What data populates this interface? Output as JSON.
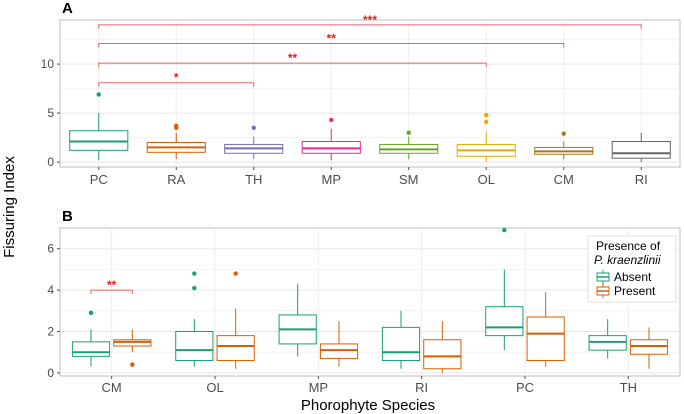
{
  "chart_data": [
    {
      "type": "box",
      "panel_label": "A",
      "categories": [
        "PC",
        "RA",
        "TH",
        "MP",
        "SM",
        "OL",
        "CM",
        "RI"
      ],
      "colors": [
        "#1b9e77",
        "#d95f02",
        "#7570b3",
        "#e7298a",
        "#66a61e",
        "#e6ab02",
        "#a6761d",
        "#666666"
      ],
      "ylim": [
        -0.5,
        14.5
      ],
      "yticks": [
        0,
        5,
        10
      ],
      "ytick_labels": [
        "0",
        "5",
        "10"
      ],
      "grid": true,
      "boxes": [
        {
          "category": "PC",
          "min": 0.2,
          "q1": 1.2,
          "median": 2.1,
          "q3": 3.2,
          "max": 5.0,
          "outliers": [
            6.9
          ]
        },
        {
          "category": "RA",
          "min": 0.3,
          "q1": 1.0,
          "median": 1.5,
          "q3": 2.0,
          "max": 3.0,
          "outliers": [
            3.5,
            3.7
          ]
        },
        {
          "category": "TH",
          "min": 0.3,
          "q1": 0.9,
          "median": 1.4,
          "q3": 1.8,
          "max": 2.6,
          "outliers": [
            3.5
          ]
        },
        {
          "category": "MP",
          "min": 0.2,
          "q1": 0.9,
          "median": 1.4,
          "q3": 2.1,
          "max": 3.4,
          "outliers": [
            4.3
          ]
        },
        {
          "category": "SM",
          "min": 0.3,
          "q1": 0.9,
          "median": 1.3,
          "q3": 1.8,
          "max": 2.6,
          "outliers": [
            3.0
          ]
        },
        {
          "category": "OL",
          "min": 0.0,
          "q1": 0.6,
          "median": 1.2,
          "q3": 1.8,
          "max": 3.1,
          "outliers": [
            4.1,
            4.8
          ]
        },
        {
          "category": "CM",
          "min": 0.3,
          "q1": 0.8,
          "median": 1.1,
          "q3": 1.5,
          "max": 2.1,
          "outliers": [
            2.9
          ]
        },
        {
          "category": "RI",
          "min": 0.0,
          "q1": 0.4,
          "median": 0.9,
          "q3": 2.1,
          "max": 3.0,
          "outliers": []
        }
      ],
      "significance": [
        {
          "from": "PC",
          "to": "TH",
          "y": 8.1,
          "label": "*"
        },
        {
          "from": "PC",
          "to": "OL",
          "y": 10.1,
          "label": "**"
        },
        {
          "from": "PC",
          "to": "CM",
          "y": 12.1,
          "label": "**"
        },
        {
          "from": "PC",
          "to": "RI",
          "y": 14.0,
          "label": "***"
        }
      ]
    },
    {
      "type": "box",
      "panel_label": "B",
      "categories": [
        "CM",
        "OL",
        "MP",
        "RI",
        "PC",
        "TH"
      ],
      "xlabel": "Phorophyte Species",
      "ylim": [
        -0.15,
        7.0
      ],
      "yticks": [
        0,
        2,
        4,
        6
      ],
      "ytick_labels": [
        "0",
        "2",
        "4",
        "6"
      ],
      "grid": true,
      "legend": {
        "title_line1": "Presence of",
        "title_line2": "P. kraenzlinii",
        "placement": "right",
        "entries": [
          "Absent",
          "Present"
        ]
      },
      "series": [
        {
          "name": "Absent",
          "color": "#1b9e77",
          "boxes": [
            {
              "category": "CM",
              "min": 0.3,
              "q1": 0.8,
              "median": 1.0,
              "q3": 1.5,
              "max": 2.1,
              "outliers": [
                2.9
              ]
            },
            {
              "category": "OL",
              "min": 0.3,
              "q1": 0.6,
              "median": 1.1,
              "q3": 2.0,
              "max": 2.6,
              "outliers": [
                4.1,
                4.8
              ]
            },
            {
              "category": "MP",
              "min": 0.8,
              "q1": 1.4,
              "median": 2.1,
              "q3": 2.8,
              "max": 4.3,
              "outliers": []
            },
            {
              "category": "RI",
              "min": 0.2,
              "q1": 0.6,
              "median": 1.0,
              "q3": 2.2,
              "max": 3.0,
              "outliers": []
            },
            {
              "category": "PC",
              "min": 1.1,
              "q1": 1.8,
              "median": 2.2,
              "q3": 3.2,
              "max": 5.0,
              "outliers": [
                6.9
              ]
            },
            {
              "category": "TH",
              "min": 0.7,
              "q1": 1.1,
              "median": 1.5,
              "q3": 1.8,
              "max": 2.6,
              "outliers": [
                3.5
              ]
            }
          ]
        },
        {
          "name": "Present",
          "color": "#d95f02",
          "boxes": [
            {
              "category": "CM",
              "min": 1.0,
              "q1": 1.3,
              "median": 1.5,
              "q3": 1.6,
              "max": 2.1,
              "outliers": [
                0.4
              ]
            },
            {
              "category": "OL",
              "min": 0.2,
              "q1": 0.6,
              "median": 1.3,
              "q3": 1.8,
              "max": 3.1,
              "outliers": [
                4.8
              ]
            },
            {
              "category": "MP",
              "min": 0.3,
              "q1": 0.7,
              "median": 1.1,
              "q3": 1.4,
              "max": 2.5,
              "outliers": []
            },
            {
              "category": "RI",
              "min": 0.0,
              "q1": 0.2,
              "median": 0.8,
              "q3": 1.6,
              "max": 2.5,
              "outliers": []
            },
            {
              "category": "PC",
              "min": 0.3,
              "q1": 0.6,
              "median": 1.9,
              "q3": 2.7,
              "max": 3.9,
              "outliers": []
            },
            {
              "category": "TH",
              "min": 0.2,
              "q1": 0.9,
              "median": 1.3,
              "q3": 1.6,
              "max": 2.2,
              "outliers": []
            }
          ]
        }
      ],
      "significance": [
        {
          "category": "CM",
          "y": 4.0,
          "label": "**"
        }
      ]
    }
  ],
  "shared": {
    "ylabel": "Fissuring Index"
  }
}
